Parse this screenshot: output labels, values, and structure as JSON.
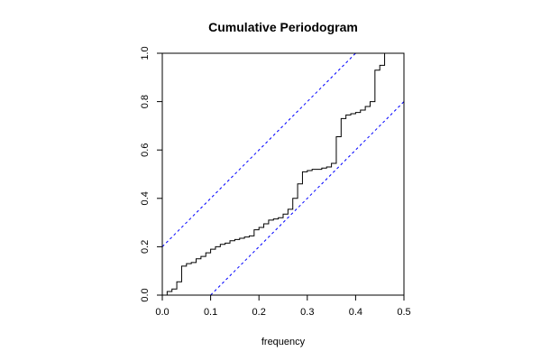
{
  "chart_data": {
    "type": "line",
    "title": "Cumulative Periodogram",
    "xlabel": "frequency",
    "ylabel": "",
    "xlim": [
      0.0,
      0.5
    ],
    "ylim": [
      0.0,
      1.0
    ],
    "x_ticks": [
      0.0,
      0.1,
      0.2,
      0.3,
      0.4,
      0.5
    ],
    "x_tick_labels": [
      "0.0",
      "0.1",
      "0.2",
      "0.3",
      "0.4",
      "0.5"
    ],
    "y_ticks": [
      0.0,
      0.2,
      0.4,
      0.6,
      0.8,
      1.0
    ],
    "y_tick_labels": [
      "0.0",
      "0.2",
      "0.4",
      "0.6",
      "0.8",
      "1.0"
    ],
    "grid": false,
    "series": [
      {
        "style": "step",
        "color": "#000000",
        "x": [
          0.0,
          0.01,
          0.02,
          0.03,
          0.04,
          0.05,
          0.06,
          0.07,
          0.08,
          0.09,
          0.1,
          0.11,
          0.12,
          0.13,
          0.14,
          0.15,
          0.16,
          0.17,
          0.18,
          0.19,
          0.2,
          0.21,
          0.22,
          0.23,
          0.24,
          0.25,
          0.26,
          0.27,
          0.28,
          0.29,
          0.3,
          0.31,
          0.32,
          0.33,
          0.34,
          0.35,
          0.36,
          0.37,
          0.38,
          0.39,
          0.4,
          0.41,
          0.42,
          0.43,
          0.44,
          0.45,
          0.46,
          0.47,
          0.48,
          0.49
        ],
        "y": [
          0.0,
          0.015,
          0.025,
          0.055,
          0.12,
          0.13,
          0.135,
          0.15,
          0.16,
          0.175,
          0.19,
          0.2,
          0.21,
          0.215,
          0.225,
          0.23,
          0.235,
          0.24,
          0.245,
          0.27,
          0.28,
          0.295,
          0.31,
          0.315,
          0.32,
          0.335,
          0.355,
          0.4,
          0.46,
          0.51,
          0.515,
          0.52,
          0.52,
          0.525,
          0.53,
          0.545,
          0.655,
          0.73,
          0.745,
          0.75,
          0.755,
          0.765,
          0.78,
          0.8,
          0.93,
          0.95,
          1.0,
          1.0,
          1.0,
          1.0
        ]
      },
      {
        "style": "dashed",
        "color": "#0000ff",
        "x": [
          0.0,
          0.4
        ],
        "y": [
          0.2,
          1.0
        ]
      },
      {
        "style": "dashed",
        "color": "#0000ff",
        "x": [
          0.1,
          0.5
        ],
        "y": [
          0.0,
          0.8
        ]
      }
    ]
  }
}
